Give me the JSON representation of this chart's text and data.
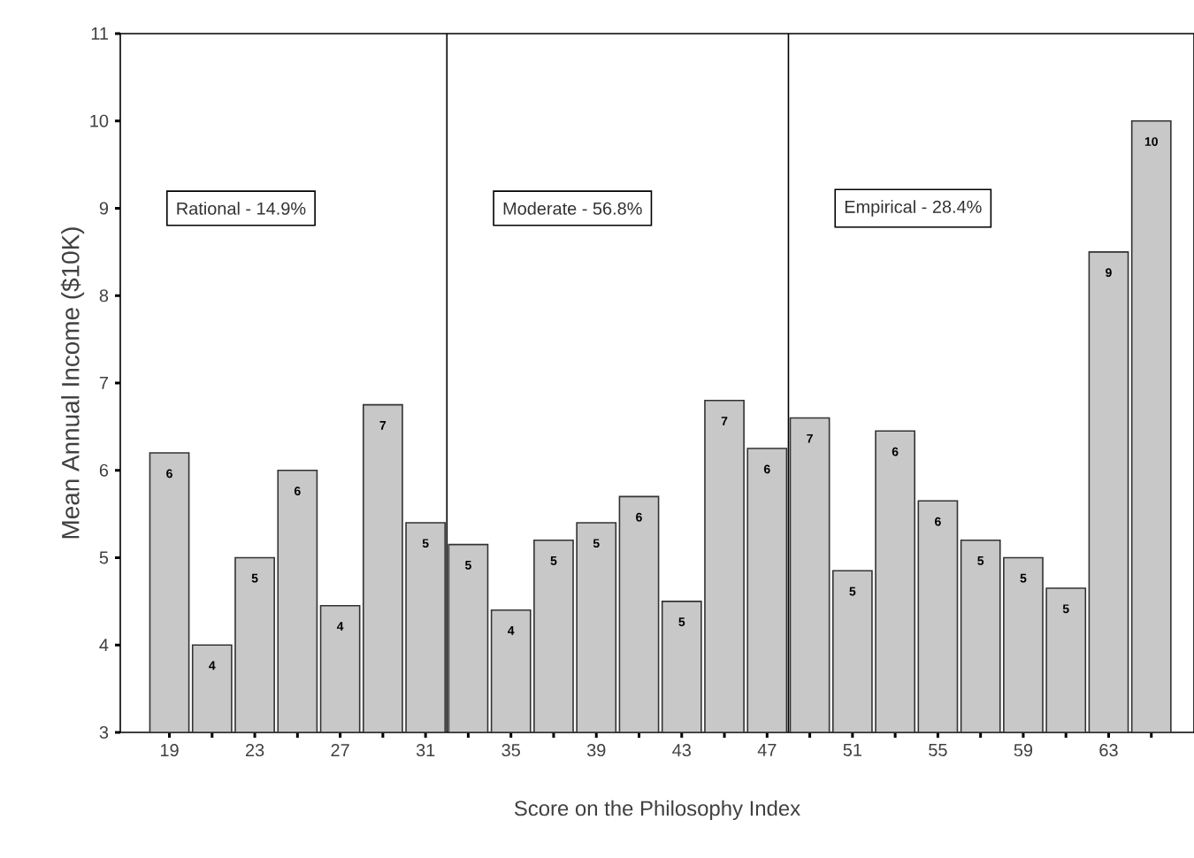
{
  "chart_data": {
    "type": "bar",
    "xlabel": "Score on the Philosophy Index",
    "ylabel": "Mean Annual Income ($10K)",
    "x": [
      19,
      21,
      23,
      25,
      27,
      29,
      31,
      33,
      35,
      37,
      39,
      41,
      43,
      45,
      47,
      49,
      51,
      53,
      55,
      57,
      59,
      61,
      63,
      65
    ],
    "values": [
      6.2,
      4.0,
      5.0,
      6.0,
      4.45,
      6.75,
      5.4,
      5.15,
      4.4,
      5.2,
      5.4,
      5.7,
      4.5,
      6.8,
      6.25,
      6.6,
      4.85,
      6.45,
      5.65,
      5.2,
      5.0,
      4.65,
      8.5,
      10.0
    ],
    "value_labels": [
      "6",
      "4",
      "5",
      "6",
      "4",
      "7",
      "5",
      "5",
      "4",
      "5",
      "5",
      "6",
      "5",
      "7",
      "6",
      "7",
      "5",
      "6",
      "6",
      "5",
      "5",
      "5",
      "9",
      "10"
    ],
    "color": "#c8c8c8",
    "xlim": [
      16.7,
      67
    ],
    "ylim": [
      3,
      11
    ],
    "xticks": [
      19,
      {
        "value": 21,
        "label": null
      },
      23,
      {
        "value": 25,
        "label": null
      },
      27,
      {
        "value": 29,
        "label": null
      },
      31,
      {
        "value": 33,
        "label": null
      },
      35,
      {
        "value": 37,
        "label": null
      },
      39,
      {
        "value": 41,
        "label": null
      },
      43,
      {
        "value": 45,
        "label": null
      },
      47,
      {
        "value": 49,
        "label": null
      },
      51,
      {
        "value": 53,
        "label": null
      },
      55,
      {
        "value": 57,
        "label": null
      },
      59,
      {
        "value": 61,
        "label": null
      },
      63,
      {
        "value": 65,
        "label": null
      }
    ],
    "yticks": [
      3,
      4,
      5,
      6,
      7,
      8,
      9,
      10,
      11
    ],
    "ref_lines": [
      {
        "axis": "x",
        "value": 32
      },
      {
        "axis": "x",
        "value": 48
      }
    ],
    "annotations": [
      "Rational - 14.9%",
      "Moderate - 56.8%",
      "Empirical - 28.4%"
    ]
  }
}
